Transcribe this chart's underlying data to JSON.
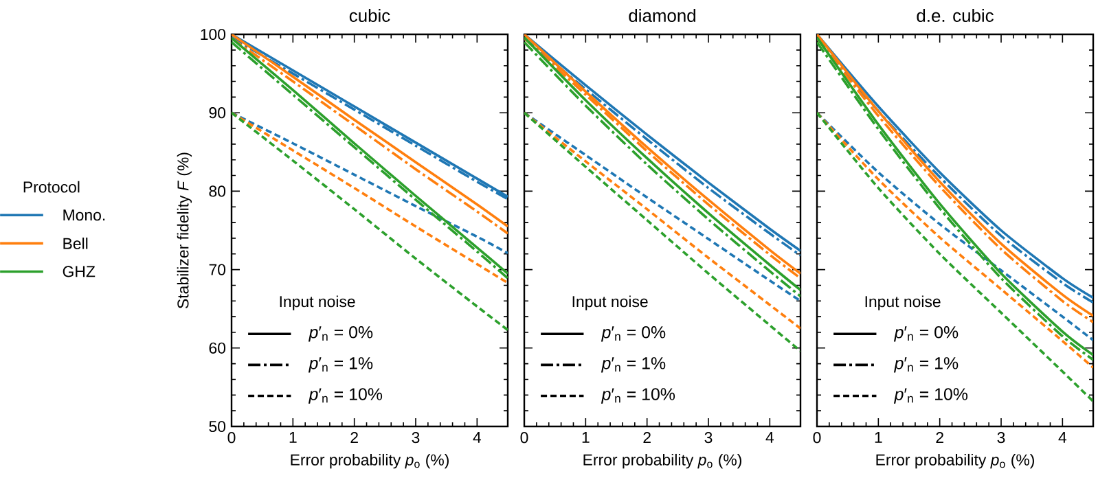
{
  "chart_data": [
    {
      "type": "line",
      "title": "cubic",
      "xlabel": "Error probability *p*$_{o}$ (%)",
      "ylabel": "Stabilizer fidelity *F* (%)",
      "legend": "left",
      "legend_title": "Protocol",
      "xlim": [
        0,
        4.5
      ],
      "ylim": [
        50,
        100
      ],
      "xticks": [
        0,
        1,
        2,
        3,
        4
      ],
      "yticks": [
        50,
        60,
        70,
        80,
        90,
        100
      ],
      "x": [
        0,
        1,
        2,
        3,
        4,
        4.5
      ],
      "annotations": [
        "Input noise",
        "*p*′$_{n}$ = 0%",
        "*p*′$_{n}$ = 1%",
        "*p*′$_{n}$ = 10%"
      ],
      "series": [
        {
          "name": "Mono.",
          "color": "#1f77b4",
          "line_style": "solid",
          "values": [
            100,
            95.4,
            90.8,
            86.2,
            81.6,
            79.3
          ]
        },
        {
          "color": "#1f77b4",
          "line_style": "dashdot",
          "values": [
            99.6,
            95.0,
            90.4,
            85.8,
            81.2,
            79.0
          ]
        },
        {
          "color": "#1f77b4",
          "line_style": "dashed",
          "values": [
            90,
            86.1,
            82.1,
            78.1,
            74.2,
            72.1
          ]
        },
        {
          "name": "Bell",
          "color": "#ff7f0e",
          "line_style": "solid",
          "values": [
            100,
            94.6,
            89.1,
            83.7,
            78.3,
            75.5
          ]
        },
        {
          "color": "#ff7f0e",
          "line_style": "dashdot",
          "values": [
            99.5,
            94.0,
            88.4,
            82.8,
            77.4,
            74.6
          ]
        },
        {
          "color": "#ff7f0e",
          "line_style": "dashed",
          "values": [
            90,
            85.2,
            80.4,
            75.5,
            70.7,
            68.3
          ]
        },
        {
          "name": "GHZ",
          "color": "#2ca02c",
          "line_style": "solid",
          "values": [
            99.5,
            92.9,
            86.1,
            79.4,
            72.8,
            69.5
          ]
        },
        {
          "color": "#2ca02c",
          "line_style": "dashdot",
          "values": [
            99.0,
            92.3,
            85.6,
            78.9,
            72.3,
            68.9
          ]
        },
        {
          "color": "#2ca02c",
          "line_style": "dashed",
          "values": [
            90,
            83.9,
            77.7,
            71.4,
            65.3,
            62.3
          ]
        }
      ]
    },
    {
      "type": "line",
      "title": "diamond",
      "xlabel": "Error probability *p*$_{o}$ (%)",
      "tick_labels": "x",
      "xlim": [
        0,
        4.5
      ],
      "ylim": [
        50,
        100
      ],
      "xticks": [
        0,
        1,
        2,
        3,
        4
      ],
      "yticks": [
        50,
        60,
        70,
        80,
        90,
        100
      ],
      "x": [
        0,
        1,
        2,
        3,
        4,
        4.5
      ],
      "annotations": [
        "Input noise",
        "*p*′$_{n}$ = 0%",
        "*p*′$_{n}$ = 1%",
        "*p*′$_{n}$ = 10%"
      ],
      "series": [
        {
          "color": "#1f77b4",
          "line_style": "solid",
          "values": [
            100,
            93.5,
            87.2,
            81.1,
            75.2,
            72.4
          ]
        },
        {
          "color": "#1f77b4",
          "line_style": "dashdot",
          "values": [
            99.5,
            93.0,
            86.6,
            80.4,
            74.6,
            71.8
          ]
        },
        {
          "color": "#1f77b4",
          "line_style": "dashed",
          "values": [
            90,
            84.6,
            79.2,
            73.9,
            68.6,
            66.0
          ]
        },
        {
          "color": "#ff7f0e",
          "line_style": "solid",
          "values": [
            100,
            92.7,
            85.6,
            78.9,
            72.5,
            69.5
          ]
        },
        {
          "color": "#ff7f0e",
          "line_style": "dashdot",
          "values": [
            99.5,
            92.3,
            85.1,
            78.3,
            71.9,
            68.9
          ]
        },
        {
          "color": "#ff7f0e",
          "line_style": "dashed",
          "values": [
            90,
            83.8,
            77.7,
            71.5,
            65.5,
            62.5
          ]
        },
        {
          "color": "#2ca02c",
          "line_style": "solid",
          "values": [
            99.6,
            91.6,
            84.2,
            77.2,
            70.6,
            67.4
          ]
        },
        {
          "color": "#2ca02c",
          "line_style": "dashdot",
          "values": [
            99.0,
            90.9,
            83.4,
            76.4,
            69.8,
            66.6
          ]
        },
        {
          "color": "#2ca02c",
          "line_style": "dashed",
          "values": [
            90,
            83.1,
            76.3,
            69.5,
            62.9,
            59.6
          ]
        }
      ]
    },
    {
      "type": "line",
      "title": "d.e. cubic",
      "xlabel": "Error probability *p*$_{o}$ (%)",
      "tick_labels": "x",
      "xlim": [
        0,
        4.5
      ],
      "ylim": [
        50,
        100
      ],
      "xticks": [
        0,
        1,
        2,
        3,
        4
      ],
      "yticks": [
        50,
        60,
        70,
        80,
        90,
        100
      ],
      "x": [
        0,
        1,
        2,
        3,
        4,
        4.5
      ],
      "annotations": [
        "Input noise",
        "*p*′$_{n}$ = 0%",
        "*p*′$_{n}$ = 1%",
        "*p*′$_{n}$ = 10%"
      ],
      "series": [
        {
          "color": "#1f77b4",
          "line_style": "solid",
          "values": [
            100,
            90.8,
            82.4,
            75.0,
            68.9,
            66.4
          ]
        },
        {
          "color": "#1f77b4",
          "line_style": "dashdot",
          "values": [
            99.5,
            90.2,
            81.8,
            74.3,
            68.3,
            65.8
          ]
        },
        {
          "color": "#1f77b4",
          "line_style": "dashed",
          "values": [
            90,
            82.4,
            75.8,
            69.9,
            64.0,
            61.0
          ]
        },
        {
          "color": "#ff7f0e",
          "line_style": "solid",
          "values": [
            100,
            90.2,
            81.2,
            73.3,
            66.8,
            64.1
          ]
        },
        {
          "color": "#ff7f0e",
          "line_style": "dashdot",
          "values": [
            99.5,
            89.6,
            80.6,
            72.6,
            66.0,
            63.3
          ]
        },
        {
          "color": "#ff7f0e",
          "line_style": "dashed",
          "values": [
            90,
            81.5,
            74.1,
            67.5,
            60.9,
            57.5
          ]
        },
        {
          "color": "#2ca02c",
          "line_style": "solid",
          "values": [
            99.6,
            88.5,
            78.4,
            69.5,
            62.1,
            59.1
          ]
        },
        {
          "color": "#2ca02c",
          "line_style": "dashdot",
          "values": [
            99.0,
            87.9,
            77.8,
            68.9,
            61.5,
            58.5
          ]
        },
        {
          "color": "#2ca02c",
          "line_style": "dashed",
          "values": [
            90,
            80.4,
            72.0,
            64.5,
            57.0,
            53.2
          ]
        }
      ]
    }
  ]
}
